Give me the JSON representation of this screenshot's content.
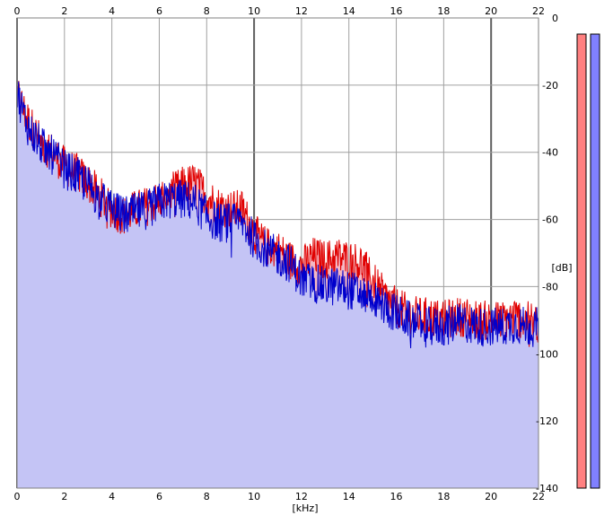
{
  "chart_data": {
    "type": "area",
    "xlabel": "[kHz]",
    "ylabel": "[dB]",
    "xlim": [
      0,
      22
    ],
    "ylim": [
      -140,
      0
    ],
    "x_ticks": [
      "0",
      "2",
      "4",
      "6",
      "8",
      "10",
      "12",
      "14",
      "16",
      "18",
      "20",
      "22"
    ],
    "y_ticks": [
      "0",
      "-20",
      "-40",
      "-60",
      "-80",
      "-100",
      "-120",
      "-140"
    ],
    "grid": true,
    "series": [
      {
        "color": "#e00000",
        "fill": "#f5b8c4",
        "x": [
          0,
          0.25,
          0.5,
          1,
          1.5,
          2,
          2.5,
          3,
          3.5,
          4,
          4.5,
          5,
          5.5,
          6,
          6.5,
          7,
          7.5,
          8,
          8.5,
          9,
          9.5,
          10,
          10.5,
          11,
          11.5,
          12,
          12.5,
          13,
          13.5,
          14,
          14.5,
          15,
          15.5,
          16,
          16.5,
          17,
          17.5,
          18,
          18.5,
          19,
          19.5,
          20,
          20.5,
          21,
          21.5,
          22
        ],
        "values": [
          -22,
          -27,
          -31,
          -37,
          -40,
          -44,
          -46,
          -49,
          -53,
          -57,
          -59,
          -57,
          -56,
          -54,
          -52,
          -50,
          -49,
          -53,
          -56,
          -57,
          -57,
          -64,
          -68,
          -69,
          -72,
          -74,
          -71,
          -72,
          -71,
          -72,
          -73,
          -78,
          -83,
          -86,
          -88,
          -89,
          -89,
          -90,
          -89,
          -89,
          -90,
          -90,
          -90,
          -89,
          -90,
          -91
        ]
      },
      {
        "color": "#0000cc",
        "fill": "#c4c4f5",
        "x": [
          0,
          0.25,
          0.5,
          1,
          1.5,
          2,
          2.5,
          3,
          3.5,
          4,
          4.5,
          5,
          5.5,
          6,
          6.5,
          7,
          7.5,
          8,
          8.5,
          9,
          9.5,
          10,
          10.5,
          11,
          11.5,
          12,
          12.5,
          13,
          13.5,
          14,
          14.5,
          15,
          15.5,
          16,
          16.5,
          17,
          17.5,
          18,
          18.5,
          19,
          19.5,
          20,
          20.5,
          21,
          21.5,
          22
        ],
        "values": [
          -22,
          -28,
          -33,
          -38,
          -41,
          -45,
          -47,
          -50,
          -54,
          -57,
          -59,
          -58,
          -57,
          -55,
          -54,
          -54,
          -55,
          -59,
          -61,
          -61,
          -61,
          -66,
          -69,
          -71,
          -73,
          -78,
          -79,
          -80,
          -80,
          -81,
          -82,
          -83,
          -86,
          -88,
          -90,
          -91,
          -92,
          -92,
          -91,
          -91,
          -92,
          -92,
          -92,
          -91,
          -92,
          -92
        ]
      }
    ]
  },
  "level_meters": [
    {
      "color": "#ff8080"
    },
    {
      "color": "#8080ff"
    }
  ]
}
